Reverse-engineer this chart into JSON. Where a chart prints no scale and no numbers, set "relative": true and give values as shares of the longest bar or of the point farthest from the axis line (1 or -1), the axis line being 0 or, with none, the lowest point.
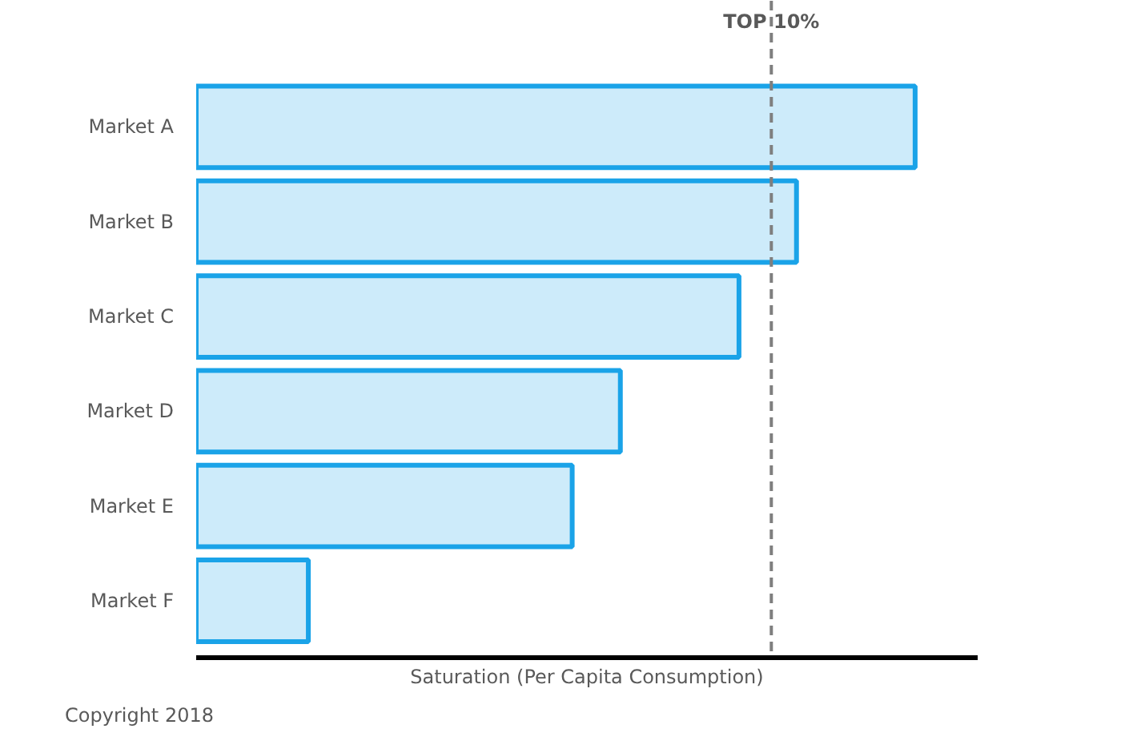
{
  "chart_data": {
    "type": "bar",
    "orientation": "horizontal",
    "relative": true,
    "categories": [
      "Market A",
      "Market B",
      "Market C",
      "Market D",
      "Market E",
      "Market F"
    ],
    "series": [
      {
        "color": "#1aa3e8",
        "values": [
          1,
          0.835,
          0.755,
          0.59,
          0.523,
          0.156
        ]
      }
    ],
    "xlabel": "Saturation (Per Capita Consumption)",
    "ref_lines": [
      {
        "axis": "x",
        "value": 0.8,
        "label": "TOP 10%",
        "color": "#7f7f7f",
        "line_style": "dashed"
      }
    ],
    "annotations": [
      "Copyright 2018"
    ]
  }
}
